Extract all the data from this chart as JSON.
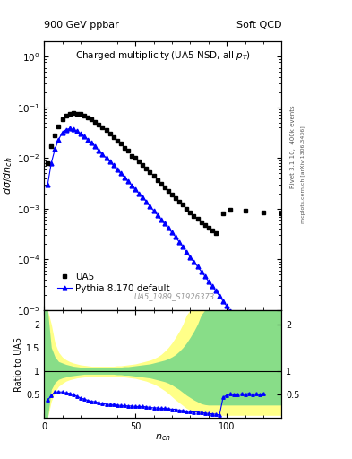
{
  "title_left": "900 GeV ppbar",
  "title_right": "Soft QCD",
  "plot_title": "Charged multiplicity (UA5 NSD, all p_{T})",
  "ylabel_main": "dσ/dn_{ch}",
  "ylabel_ratio": "Ratio to UA5",
  "xlabel": "n_{ch}",
  "right_label_top": "Rivet 3.1.10,  400k events",
  "right_label_bottom": "mcplots.cern.ch [arXiv:1306.3436]",
  "watermark": "UA5_1989_S1926373",
  "ua5_x": [
    2,
    4,
    6,
    8,
    10,
    12,
    14,
    16,
    18,
    20,
    22,
    24,
    26,
    28,
    30,
    32,
    34,
    36,
    38,
    40,
    42,
    44,
    46,
    48,
    50,
    52,
    54,
    56,
    58,
    60,
    62,
    64,
    66,
    68,
    70,
    72,
    74,
    76,
    78,
    80,
    82,
    84,
    86,
    88,
    90,
    92,
    94,
    98,
    102,
    110,
    120,
    130
  ],
  "ua5_y": [
    0.008,
    0.017,
    0.028,
    0.042,
    0.058,
    0.068,
    0.074,
    0.076,
    0.075,
    0.073,
    0.068,
    0.063,
    0.057,
    0.051,
    0.045,
    0.04,
    0.035,
    0.03,
    0.026,
    0.022,
    0.019,
    0.016,
    0.014,
    0.011,
    0.01,
    0.0085,
    0.0072,
    0.0062,
    0.0052,
    0.0044,
    0.0037,
    0.0031,
    0.0026,
    0.0022,
    0.0019,
    0.0016,
    0.0014,
    0.0012,
    0.001,
    0.00085,
    0.00073,
    0.00063,
    0.00055,
    0.00048,
    0.00042,
    0.00037,
    0.00033,
    0.0008,
    0.00095,
    0.0009,
    0.00085,
    0.0008
  ],
  "pythia_x": [
    2,
    4,
    6,
    8,
    10,
    12,
    14,
    16,
    18,
    20,
    22,
    24,
    26,
    28,
    30,
    32,
    34,
    36,
    38,
    40,
    42,
    44,
    46,
    48,
    50,
    52,
    54,
    56,
    58,
    60,
    62,
    64,
    66,
    68,
    70,
    72,
    74,
    76,
    78,
    80,
    82,
    84,
    86,
    88,
    90,
    92,
    94,
    96,
    98,
    100,
    102,
    104,
    106,
    108,
    110,
    112,
    114,
    116,
    118,
    120
  ],
  "pythia_y": [
    0.003,
    0.008,
    0.015,
    0.023,
    0.032,
    0.036,
    0.038,
    0.037,
    0.034,
    0.03,
    0.027,
    0.023,
    0.02,
    0.017,
    0.014,
    0.012,
    0.01,
    0.0086,
    0.0072,
    0.006,
    0.005,
    0.0042,
    0.0035,
    0.0029,
    0.0024,
    0.002,
    0.0017,
    0.0014,
    0.0011,
    0.00092,
    0.00076,
    0.00062,
    0.00051,
    0.00042,
    0.00034,
    0.00028,
    0.00022,
    0.00018,
    0.00014,
    0.00011,
    9e-05,
    7.3e-05,
    5.8e-05,
    4.7e-05,
    3.7e-05,
    3e-05,
    2.4e-05,
    1.9e-05,
    1.5e-05,
    1.2e-05,
    9.5e-06,
    7.5e-06,
    5.9e-06,
    4.7e-06,
    3.7e-06,
    2.9e-06,
    2.2e-06,
    1.7e-06,
    1.3e-06,
    1e-06
  ],
  "ua5_color": "black",
  "pythia_color": "blue",
  "ratio_green_x": [
    0,
    2,
    4,
    6,
    8,
    10,
    12,
    14,
    16,
    18,
    20,
    22,
    24,
    26,
    28,
    30,
    32,
    34,
    36,
    38,
    40,
    42,
    44,
    46,
    48,
    50,
    52,
    54,
    56,
    58,
    60,
    62,
    64,
    66,
    68,
    70,
    72,
    74,
    76,
    78,
    80,
    82,
    84,
    86,
    88,
    90,
    92,
    94,
    96,
    98,
    100,
    102,
    104,
    106,
    108,
    110,
    112,
    114,
    116,
    118,
    120,
    122,
    124,
    130
  ],
  "ratio_green_upper": [
    2.3,
    2.3,
    1.5,
    1.3,
    1.2,
    1.17,
    1.14,
    1.12,
    1.1,
    1.09,
    1.08,
    1.07,
    1.07,
    1.07,
    1.07,
    1.07,
    1.07,
    1.07,
    1.07,
    1.07,
    1.08,
    1.08,
    1.09,
    1.09,
    1.1,
    1.11,
    1.12,
    1.13,
    1.14,
    1.15,
    1.17,
    1.19,
    1.21,
    1.23,
    1.26,
    1.3,
    1.35,
    1.42,
    1.5,
    1.6,
    1.72,
    1.85,
    2.0,
    2.2,
    2.3,
    2.3,
    2.3,
    2.3,
    2.3,
    2.3,
    2.3,
    2.3,
    2.3,
    2.3,
    2.3,
    2.3,
    2.3,
    2.3,
    2.3,
    2.3,
    2.3,
    2.3,
    2.3,
    2.3
  ],
  "ratio_green_lower": [
    0.0,
    0.0,
    0.6,
    0.75,
    0.82,
    0.85,
    0.87,
    0.89,
    0.9,
    0.91,
    0.92,
    0.93,
    0.93,
    0.93,
    0.93,
    0.93,
    0.93,
    0.93,
    0.93,
    0.93,
    0.92,
    0.92,
    0.91,
    0.91,
    0.9,
    0.89,
    0.88,
    0.87,
    0.86,
    0.85,
    0.83,
    0.81,
    0.79,
    0.77,
    0.74,
    0.7,
    0.65,
    0.6,
    0.54,
    0.48,
    0.43,
    0.38,
    0.34,
    0.3,
    0.28,
    0.27,
    0.27,
    0.27,
    0.27,
    0.27,
    0.27,
    0.27,
    0.27,
    0.27,
    0.27,
    0.27,
    0.27,
    0.27,
    0.27,
    0.27,
    0.27,
    0.27,
    0.27,
    0.27
  ],
  "ratio_yellow_x": [
    0,
    2,
    4,
    6,
    8,
    10,
    12,
    14,
    16,
    18,
    20,
    22,
    24,
    26,
    28,
    30,
    32,
    34,
    36,
    38,
    40,
    42,
    44,
    46,
    48,
    50,
    52,
    54,
    56,
    58,
    60,
    62,
    64,
    66,
    68,
    70,
    72,
    74,
    76,
    78,
    80,
    82,
    84,
    86,
    88,
    90,
    92,
    94,
    96,
    98,
    100,
    102,
    104,
    106,
    108,
    110,
    112,
    114,
    116,
    118,
    120,
    122,
    124,
    130
  ],
  "ratio_yellow_upper": [
    2.3,
    2.3,
    2.0,
    1.6,
    1.4,
    1.3,
    1.24,
    1.2,
    1.17,
    1.15,
    1.13,
    1.12,
    1.11,
    1.1,
    1.1,
    1.1,
    1.1,
    1.1,
    1.1,
    1.1,
    1.11,
    1.11,
    1.12,
    1.13,
    1.14,
    1.15,
    1.17,
    1.19,
    1.21,
    1.23,
    1.26,
    1.3,
    1.35,
    1.42,
    1.5,
    1.6,
    1.72,
    1.85,
    2.0,
    2.2,
    2.3,
    2.3,
    2.3,
    2.3,
    2.3,
    2.3,
    2.3,
    2.3,
    2.3,
    2.3,
    2.3,
    2.3,
    2.3,
    2.3,
    2.3,
    2.3,
    2.3,
    2.3,
    2.3,
    2.3,
    2.3,
    2.3,
    2.3,
    2.3
  ],
  "ratio_yellow_lower": [
    0.0,
    0.0,
    0.35,
    0.55,
    0.67,
    0.73,
    0.78,
    0.81,
    0.83,
    0.85,
    0.86,
    0.87,
    0.88,
    0.88,
    0.89,
    0.89,
    0.89,
    0.89,
    0.89,
    0.89,
    0.88,
    0.88,
    0.87,
    0.86,
    0.85,
    0.84,
    0.82,
    0.8,
    0.78,
    0.75,
    0.72,
    0.68,
    0.63,
    0.58,
    0.52,
    0.45,
    0.38,
    0.32,
    0.26,
    0.2,
    0.16,
    0.13,
    0.1,
    0.08,
    0.06,
    0.05,
    0.05,
    0.05,
    0.05,
    0.05,
    0.05,
    0.05,
    0.05,
    0.05,
    0.05,
    0.05,
    0.05,
    0.05,
    0.05,
    0.05,
    0.05,
    0.05,
    0.05,
    0.05
  ],
  "ratio_pythia_x": [
    2,
    4,
    6,
    8,
    10,
    12,
    14,
    16,
    18,
    20,
    22,
    24,
    26,
    28,
    30,
    32,
    34,
    36,
    38,
    40,
    42,
    44,
    46,
    48,
    50,
    52,
    54,
    56,
    58,
    60,
    62,
    64,
    66,
    68,
    70,
    72,
    74,
    76,
    78,
    80,
    82,
    84,
    86,
    88,
    90,
    92,
    94,
    96,
    98,
    100,
    102,
    104,
    106,
    108,
    110,
    112,
    114,
    116,
    118,
    120
  ],
  "ratio_pythia_y": [
    0.38,
    0.47,
    0.55,
    0.55,
    0.55,
    0.53,
    0.52,
    0.49,
    0.46,
    0.42,
    0.4,
    0.37,
    0.35,
    0.34,
    0.32,
    0.3,
    0.29,
    0.28,
    0.28,
    0.27,
    0.26,
    0.26,
    0.25,
    0.25,
    0.24,
    0.24,
    0.24,
    0.23,
    0.22,
    0.21,
    0.21,
    0.2,
    0.2,
    0.19,
    0.18,
    0.18,
    0.16,
    0.15,
    0.14,
    0.13,
    0.12,
    0.12,
    0.11,
    0.1,
    0.088,
    0.081,
    0.073,
    0.057,
    0.44,
    0.48,
    0.51,
    0.49,
    0.5,
    0.51,
    0.5,
    0.52,
    0.5,
    0.51,
    0.49,
    0.52
  ],
  "ylim_main": [
    1e-05,
    2.0
  ],
  "ylim_ratio": [
    0.0,
    2.3
  ],
  "xlim": [
    0,
    130
  ]
}
